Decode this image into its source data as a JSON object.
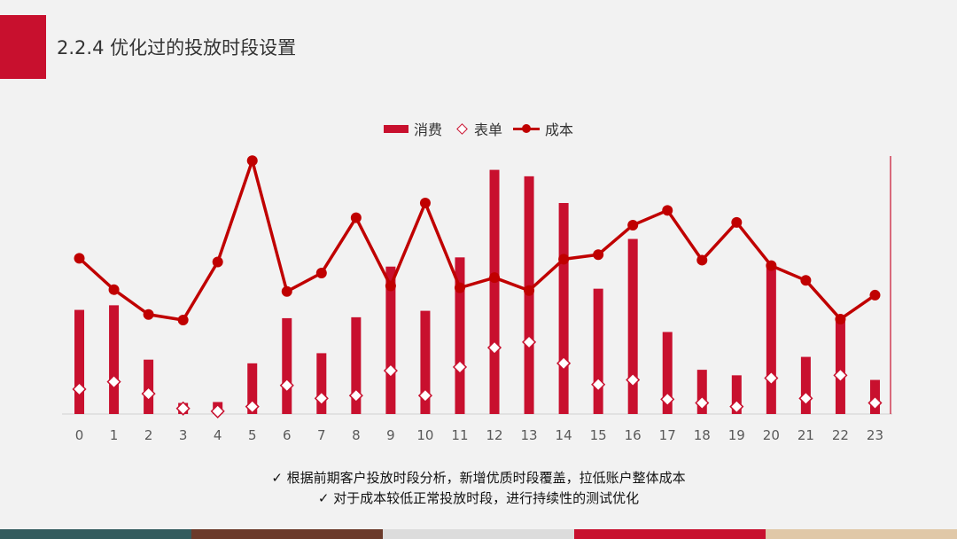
{
  "header": {
    "title": "2.2.4 优化过的投放时段设置"
  },
  "legend": [
    {
      "label": "消费",
      "kind": "bar"
    },
    {
      "label": "表单",
      "kind": "diamond"
    },
    {
      "label": "成本",
      "kind": "line"
    }
  ],
  "colors": {
    "bar": "#c8102e",
    "line": "#c00000",
    "accent": "#c8102e",
    "footer": [
      "#335b5e",
      "#6b3a2a",
      "#dcdcdc",
      "#c8102e",
      "#e0c8a8"
    ]
  },
  "chart_data": {
    "type": "bar",
    "categories": [
      "0",
      "1",
      "2",
      "3",
      "4",
      "5",
      "6",
      "7",
      "8",
      "9",
      "10",
      "11",
      "12",
      "13",
      "14",
      "15",
      "16",
      "17",
      "18",
      "19",
      "20",
      "21",
      "22",
      "23"
    ],
    "series": [
      {
        "name": "消费",
        "type": "bar",
        "axis": "left",
        "values": [
          113,
          118,
          59,
          12,
          13,
          55,
          104,
          66,
          105,
          160,
          112,
          170,
          265,
          258,
          229,
          136,
          190,
          89,
          48,
          42,
          160,
          62,
          105,
          37
        ]
      },
      {
        "name": "表单",
        "type": "diamond",
        "axis": "left",
        "values": [
          27,
          35,
          22,
          6,
          3,
          8,
          31,
          17,
          20,
          47,
          20,
          51,
          72,
          78,
          55,
          32,
          37,
          16,
          12,
          8,
          39,
          17,
          42,
          12
        ]
      },
      {
        "name": "成本",
        "type": "line",
        "axis": "right",
        "values": [
          169,
          135,
          108,
          102,
          165,
          275,
          133,
          153,
          213,
          139,
          229,
          137,
          148,
          134,
          168,
          173,
          205,
          221,
          167,
          208,
          161,
          145,
          103,
          129
        ]
      }
    ],
    "xlim": [
      -0.5,
      23.5
    ],
    "ylim": [
      0,
      280
    ],
    "y2lim": [
      0,
      280
    ],
    "grid": false,
    "legend_position": "top-center"
  },
  "notes": [
    "✓ 根据前期客户投放时段分析，新增优质时段覆盖，拉低账户整体成本",
    "✓ 对于成本较低正常投放时段，进行持续性的测试优化"
  ]
}
